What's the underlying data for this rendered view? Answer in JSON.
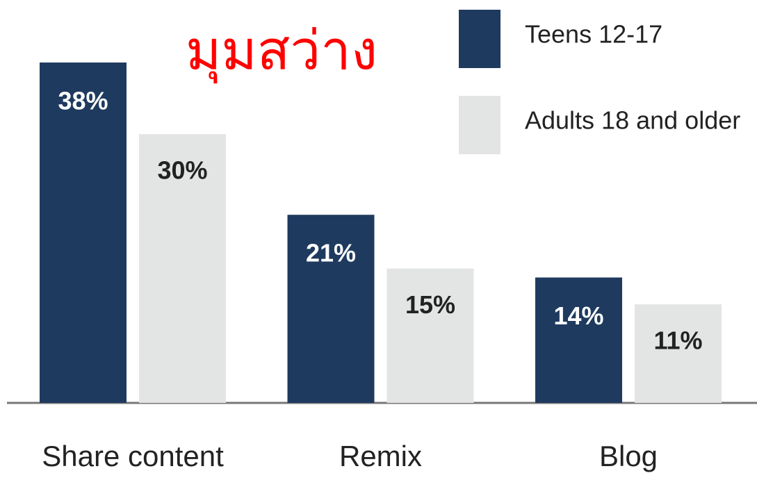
{
  "chart_data": {
    "type": "bar",
    "title": "มุมสว่าง",
    "categories": [
      "Share content",
      "Remix",
      "Blog"
    ],
    "series": [
      {
        "name": "Teens 12-17",
        "color": "#1f3a5f",
        "values": [
          38,
          21,
          14
        ],
        "value_labels": [
          "38%",
          "21%",
          "14%"
        ]
      },
      {
        "name": "Adults 18 and older",
        "color": "#e3e4e4",
        "values": [
          30,
          15,
          11
        ],
        "value_labels": [
          "30%",
          "15%",
          "11%"
        ]
      }
    ],
    "ylim": [
      0,
      38
    ],
    "legend": "top-right"
  }
}
